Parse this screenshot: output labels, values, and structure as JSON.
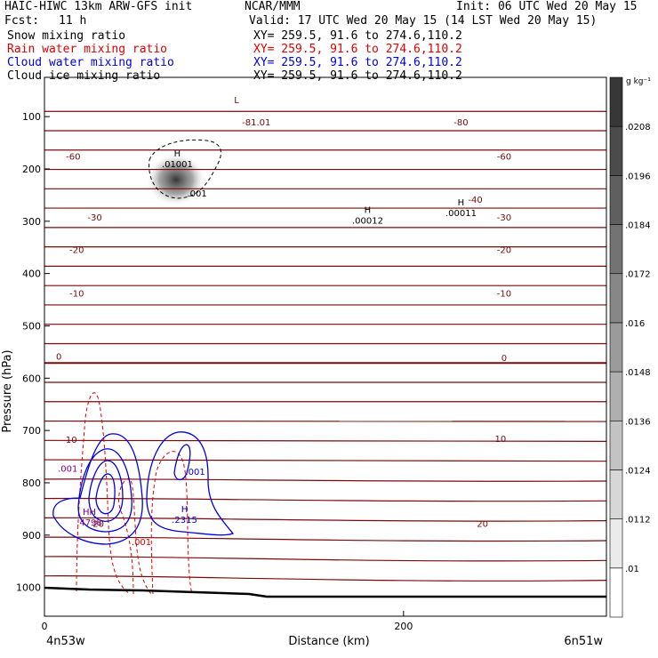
{
  "header": {
    "model_title": "HAIC-HIWC 13km ARW-GFS init",
    "org": "NCAR/MMM",
    "init": "Init: 06 UTC Wed 20 May 15",
    "fcst_label": "Fcst:",
    "fcst_value": "11 h",
    "valid": "Valid: 17 UTC Wed 20 May 15 (14 LST Wed 20 May 15)",
    "fields": [
      {
        "label": "Snow mixing ratio",
        "xy": "XY= 259.5, 91.6 to 274.6,110.2",
        "color": "#000000"
      },
      {
        "label": "Rain water mixing ratio",
        "xy": "XY= 259.5, 91.6 to 274.6,110.2",
        "color": "#e00000"
      },
      {
        "label": "Cloud water mixing ratio",
        "xy": "XY= 259.5, 91.6 to 274.6,110.2",
        "color": "#0000e0"
      },
      {
        "label": "Cloud ice mixing ratio",
        "xy": "XY= 259.5, 91.6 to 274.6,110.2",
        "color": "#000000"
      }
    ]
  },
  "colors": {
    "temperature": "#7a0a0a",
    "rain": "#e00000",
    "cloud_water": "#0000e0",
    "snow": "#000000",
    "terrain": "#000000"
  },
  "chart_data": {
    "type": "cross-section",
    "ylabel": "Pressure (hPa)",
    "xlabel": "Distance (km)",
    "x_ticks": [
      0,
      200
    ],
    "x_range": [
      0,
      313
    ],
    "y_ticks": [
      100,
      200,
      300,
      400,
      500,
      600,
      700,
      800,
      900,
      1000
    ],
    "y_range": [
      25,
      1055
    ],
    "x_start_label": "4n53w",
    "x_end_label": "6n51w",
    "colorbar": {
      "unit": "g kg⁻¹",
      "ticks": [
        ".01",
        ".0112",
        ".0124",
        ".0136",
        ".0148",
        ".016",
        ".0172",
        ".0184",
        ".0196",
        ".0208"
      ]
    },
    "temperature_labels": [
      {
        "text": "-81.01",
        "x": 118,
        "p": 110
      },
      {
        "text": "-80",
        "x": 232,
        "p": 110
      },
      {
        "text": "-60",
        "x": 16,
        "p": 175
      },
      {
        "text": "-60",
        "x": 256,
        "p": 175
      },
      {
        "text": "-40",
        "x": 240,
        "p": 258
      },
      {
        "text": "-30",
        "x": 28,
        "p": 292
      },
      {
        "text": "-30",
        "x": 256,
        "p": 292
      },
      {
        "text": "-20",
        "x": 18,
        "p": 354
      },
      {
        "text": "-20",
        "x": 256,
        "p": 354
      },
      {
        "text": "-10",
        "x": 18,
        "p": 437
      },
      {
        "text": "-10",
        "x": 256,
        "p": 437
      },
      {
        "text": "0",
        "x": 8,
        "p": 558
      },
      {
        "text": "0",
        "x": 256,
        "p": 560
      },
      {
        "text": "10",
        "x": 15,
        "p": 717
      },
      {
        "text": "10",
        "x": 254,
        "p": 715
      },
      {
        "text": "20",
        "x": 30,
        "p": 877
      },
      {
        "text": "20",
        "x": 244,
        "p": 877
      }
    ],
    "extrema": [
      {
        "mark": "L",
        "value": "",
        "x": 107,
        "p": 88,
        "color": "#7a0a0a"
      },
      {
        "mark": "H",
        "value": ".01001",
        "x": 74,
        "p": 190,
        "color": "#000000"
      },
      {
        "mark": "",
        "value": ".001",
        "x": 85,
        "p": 246,
        "color": "#000000"
      },
      {
        "mark": "H",
        "value": ".00012",
        "x": 180,
        "p": 298,
        "color": "#000000"
      },
      {
        "mark": "H",
        "value": ".00011",
        "x": 232,
        "p": 283,
        "color": "#000000"
      },
      {
        "mark": "",
        "value": ".001",
        "x": 13,
        "p": 772,
        "color": "#800080"
      },
      {
        "mark": "",
        "value": ".001",
        "x": 84,
        "p": 778,
        "color": "#0000e0"
      },
      {
        "mark": "HH",
        "value": ".4798",
        "x": 25,
        "p": 875,
        "color": "#800080"
      },
      {
        "mark": "H",
        "value": ".2315",
        "x": 78,
        "p": 870,
        "color": "#0000e0"
      },
      {
        "mark": "",
        "value": ".001",
        "x": 54,
        "p": 912,
        "color": "#e00000"
      }
    ]
  }
}
